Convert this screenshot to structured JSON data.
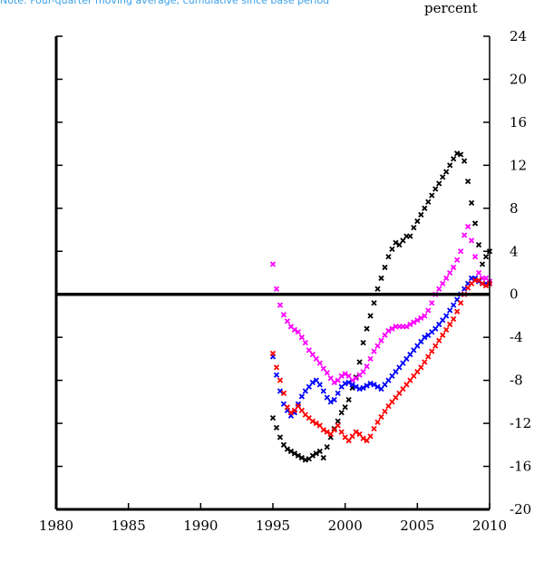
{
  "caption": "Note: Four-quarter moving average; cumulative since base period",
  "chart_data": {
    "type": "scatter",
    "title": "",
    "ylabel": "percent",
    "xlabel": "",
    "xlim": [
      1980,
      2010
    ],
    "ylim": [
      -20,
      24
    ],
    "x_ticks": [
      "1980",
      "1985",
      "1990",
      "1995",
      "2000",
      "2005",
      "2010"
    ],
    "y_ticks": [
      "24",
      "20",
      "16",
      "12",
      "8",
      "4",
      "0",
      "-4",
      "-8",
      "-12",
      "-16",
      "-20"
    ],
    "zero_line": 0,
    "legend": "none",
    "grid": false,
    "series": [
      {
        "color": "#000000",
        "x": [
          1995.0,
          1995.25,
          1995.5,
          1995.75,
          1996.0,
          1996.25,
          1996.5,
          1996.75,
          1997.0,
          1997.25,
          1997.5,
          1997.75,
          1998.0,
          1998.25,
          1998.5,
          1998.75,
          1999.0,
          1999.25,
          1999.5,
          1999.75,
          2000.0,
          2000.25,
          2000.5,
          2000.75,
          2001.0,
          2001.25,
          2001.5,
          2001.75,
          2002.0,
          2002.25,
          2002.5,
          2002.75,
          2003.0,
          2003.25,
          2003.5,
          2003.75,
          2004.0,
          2004.25,
          2004.5,
          2004.75,
          2005.0,
          2005.25,
          2005.5,
          2005.75,
          2006.0,
          2006.25,
          2006.5,
          2006.75,
          2007.0,
          2007.25,
          2007.5,
          2007.75,
          2008.0,
          2008.25,
          2008.5,
          2008.75,
          2009.0,
          2009.25,
          2009.5,
          2009.75,
          2010.0
        ],
        "values": [
          -11.5,
          -12.4,
          -13.3,
          -14.0,
          -14.4,
          -14.6,
          -14.8,
          -15.0,
          -15.2,
          -15.4,
          -15.3,
          -15.0,
          -14.8,
          -14.6,
          -15.2,
          -14.2,
          -13.3,
          -12.5,
          -11.8,
          -11.0,
          -10.5,
          -9.8,
          -8.7,
          -7.7,
          -6.3,
          -4.5,
          -3.2,
          -2.0,
          -0.8,
          0.5,
          1.5,
          2.5,
          3.5,
          4.2,
          4.8,
          4.6,
          5.0,
          5.4,
          5.4,
          6.2,
          6.8,
          7.4,
          8.0,
          8.6,
          9.2,
          9.8,
          10.3,
          10.9,
          11.4,
          12.0,
          12.6,
          13.1,
          13.0,
          12.4,
          10.5,
          8.5,
          6.6,
          4.6,
          2.8,
          3.5,
          4.0
        ]
      },
      {
        "color": "#ff00ff",
        "x": [
          1995.0,
          1995.25,
          1995.5,
          1995.75,
          1996.0,
          1996.25,
          1996.5,
          1996.75,
          1997.0,
          1997.25,
          1997.5,
          1997.75,
          1998.0,
          1998.25,
          1998.5,
          1998.75,
          1999.0,
          1999.25,
          1999.5,
          1999.75,
          2000.0,
          2000.25,
          2000.5,
          2000.75,
          2001.0,
          2001.25,
          2001.5,
          2001.75,
          2002.0,
          2002.25,
          2002.5,
          2002.75,
          2003.0,
          2003.25,
          2003.5,
          2003.75,
          2004.0,
          2004.25,
          2004.5,
          2004.75,
          2005.0,
          2005.25,
          2005.5,
          2005.75,
          2006.0,
          2006.25,
          2006.5,
          2006.75,
          2007.0,
          2007.25,
          2007.5,
          2007.75,
          2008.0,
          2008.25,
          2008.5,
          2008.75,
          2009.0,
          2009.25,
          2009.5,
          2009.75,
          2010.0
        ],
        "values": [
          2.8,
          0.5,
          -1.0,
          -1.9,
          -2.5,
          -3.0,
          -3.3,
          -3.5,
          -4.0,
          -4.5,
          -5.2,
          -5.6,
          -6.0,
          -6.4,
          -6.9,
          -7.3,
          -7.8,
          -8.2,
          -8.0,
          -7.6,
          -7.4,
          -7.6,
          -8.0,
          -7.8,
          -7.5,
          -7.2,
          -6.7,
          -6.0,
          -5.3,
          -4.8,
          -4.3,
          -3.8,
          -3.4,
          -3.2,
          -3.0,
          -3.0,
          -3.0,
          -3.0,
          -2.8,
          -2.6,
          -2.4,
          -2.2,
          -2.0,
          -1.5,
          -0.8,
          0.0,
          0.5,
          1.0,
          1.5,
          2.0,
          2.5,
          3.2,
          4.0,
          5.5,
          6.3,
          5.0,
          3.5,
          2.0,
          1.5,
          1.5,
          1.2
        ]
      },
      {
        "color": "#0000ff",
        "x": [
          1995.0,
          1995.25,
          1995.5,
          1995.75,
          1996.0,
          1996.25,
          1996.5,
          1996.75,
          1997.0,
          1997.25,
          1997.5,
          1997.75,
          1998.0,
          1998.25,
          1998.5,
          1998.75,
          1999.0,
          1999.25,
          1999.5,
          1999.75,
          2000.0,
          2000.25,
          2000.5,
          2000.75,
          2001.0,
          2001.25,
          2001.5,
          2001.75,
          2002.0,
          2002.25,
          2002.5,
          2002.75,
          2003.0,
          2003.25,
          2003.5,
          2003.75,
          2004.0,
          2004.25,
          2004.5,
          2004.75,
          2005.0,
          2005.25,
          2005.5,
          2005.75,
          2006.0,
          2006.25,
          2006.5,
          2006.75,
          2007.0,
          2007.25,
          2007.5,
          2007.75,
          2008.0,
          2008.25,
          2008.5,
          2008.75,
          2009.0,
          2009.25,
          2009.5,
          2009.75,
          2010.0
        ],
        "values": [
          -5.8,
          -7.5,
          -9.0,
          -10.2,
          -10.8,
          -11.3,
          -11.0,
          -10.2,
          -9.5,
          -9.0,
          -8.6,
          -8.2,
          -8.0,
          -8.4,
          -9.0,
          -9.6,
          -10.0,
          -9.8,
          -9.2,
          -8.6,
          -8.3,
          -8.2,
          -8.4,
          -8.6,
          -8.8,
          -8.7,
          -8.5,
          -8.3,
          -8.4,
          -8.6,
          -8.8,
          -8.4,
          -8.0,
          -7.6,
          -7.2,
          -6.8,
          -6.4,
          -6.0,
          -5.6,
          -5.2,
          -4.8,
          -4.4,
          -4.0,
          -3.8,
          -3.5,
          -3.2,
          -2.8,
          -2.4,
          -2.0,
          -1.5,
          -1.0,
          -0.5,
          0.0,
          0.5,
          1.0,
          1.5,
          1.5,
          1.2,
          1.0,
          1.0,
          1.0
        ]
      },
      {
        "color": "#ff0000",
        "x": [
          1995.0,
          1995.25,
          1995.5,
          1995.75,
          1996.0,
          1996.25,
          1996.5,
          1996.75,
          1997.0,
          1997.25,
          1997.5,
          1997.75,
          1998.0,
          1998.25,
          1998.5,
          1998.75,
          1999.0,
          1999.25,
          1999.5,
          1999.75,
          2000.0,
          2000.25,
          2000.5,
          2000.75,
          2001.0,
          2001.25,
          2001.5,
          2001.75,
          2002.0,
          2002.25,
          2002.5,
          2002.75,
          2003.0,
          2003.25,
          2003.5,
          2003.75,
          2004.0,
          2004.25,
          2004.5,
          2004.75,
          2005.0,
          2005.25,
          2005.5,
          2005.75,
          2006.0,
          2006.25,
          2006.5,
          2006.75,
          2007.0,
          2007.25,
          2007.5,
          2007.75,
          2008.0,
          2008.25,
          2008.5,
          2008.75,
          2009.0,
          2009.25,
          2009.5,
          2009.75,
          2010.0
        ],
        "values": [
          -5.5,
          -6.8,
          -8.0,
          -9.2,
          -10.5,
          -11.0,
          -10.8,
          -10.4,
          -10.8,
          -11.2,
          -11.5,
          -11.8,
          -12.0,
          -12.2,
          -12.6,
          -12.8,
          -13.0,
          -12.6,
          -12.2,
          -12.8,
          -13.3,
          -13.6,
          -13.2,
          -12.8,
          -13.0,
          -13.4,
          -13.6,
          -13.2,
          -12.5,
          -11.9,
          -11.4,
          -10.9,
          -10.4,
          -10.0,
          -9.6,
          -9.2,
          -8.8,
          -8.4,
          -8.0,
          -7.6,
          -7.2,
          -6.8,
          -6.3,
          -5.8,
          -5.3,
          -4.8,
          -4.3,
          -3.8,
          -3.3,
          -2.8,
          -2.3,
          -1.6,
          -0.8,
          0.0,
          0.6,
          1.0,
          1.3,
          1.3,
          1.0,
          0.8,
          1.0
        ]
      }
    ]
  }
}
